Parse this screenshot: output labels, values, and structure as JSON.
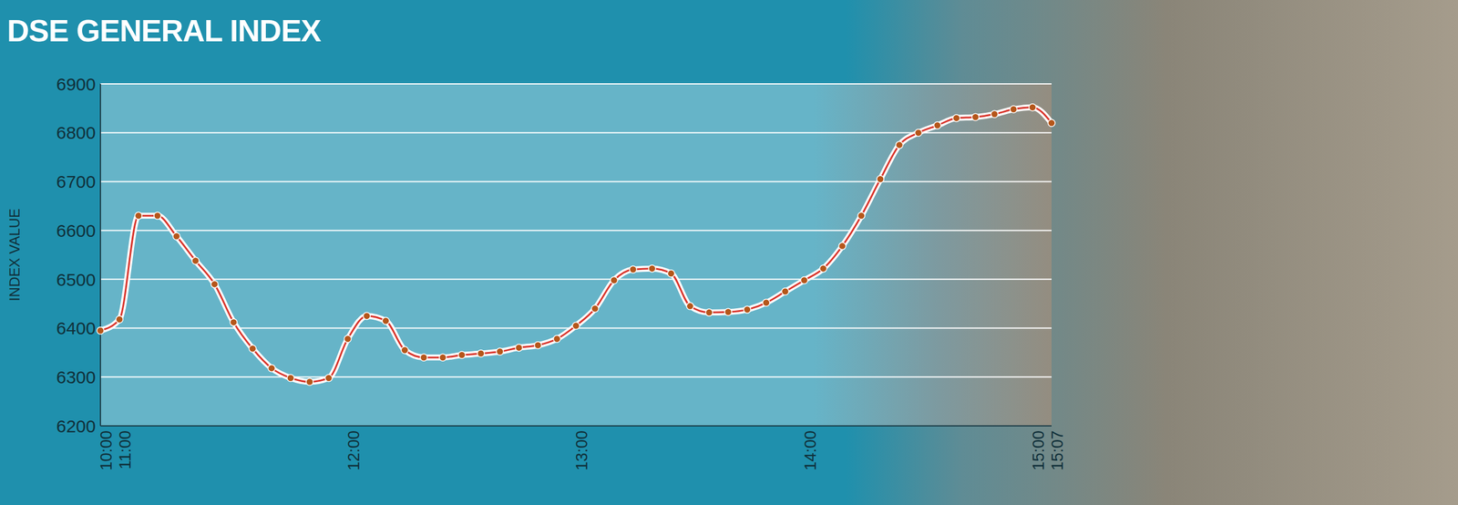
{
  "chart_data": {
    "type": "line",
    "title": "DSE GENERAL INDEX",
    "y_label": "INDEX VALUE",
    "categories": [
      "10:00",
      "11:00",
      null,
      null,
      null,
      null,
      null,
      null,
      null,
      null,
      null,
      null,
      null,
      "12:00",
      null,
      null,
      null,
      null,
      null,
      null,
      null,
      null,
      null,
      null,
      null,
      "13:00",
      null,
      null,
      null,
      null,
      null,
      null,
      null,
      null,
      null,
      null,
      null,
      "14:00",
      null,
      null,
      null,
      null,
      null,
      null,
      null,
      null,
      null,
      null,
      null,
      "15:00",
      "15:07"
    ],
    "values": [
      6395,
      6418,
      6630,
      6630,
      6588,
      6538,
      6490,
      6412,
      6358,
      6318,
      6298,
      6290,
      6298,
      6378,
      6425,
      6415,
      6355,
      6340,
      6340,
      6345,
      6348,
      6352,
      6360,
      6365,
      6378,
      6405,
      6440,
      6498,
      6520,
      6522,
      6512,
      6445,
      6432,
      6433,
      6438,
      6452,
      6475,
      6498,
      6522,
      6568,
      6630,
      6705,
      6775,
      6800,
      6815,
      6830,
      6832,
      6838,
      6848,
      6852,
      6820
    ],
    "ylim": [
      6200,
      6900
    ],
    "yticks": [
      6200,
      6300,
      6400,
      6500,
      6600,
      6700,
      6800,
      6900
    ],
    "grid": true,
    "color": "#d9342b",
    "marker": "circle"
  }
}
